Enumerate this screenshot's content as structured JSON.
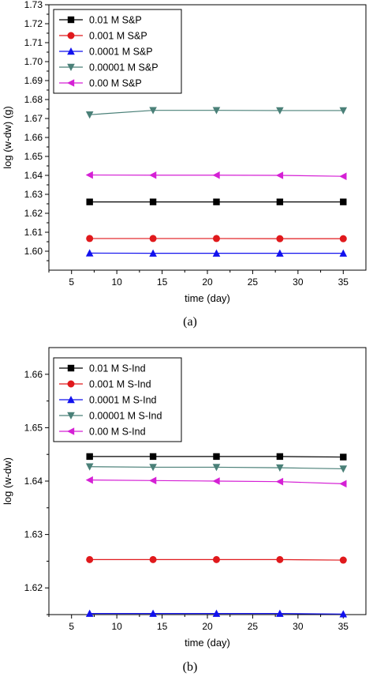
{
  "chart_data": [
    {
      "type": "line",
      "caption": "(a)",
      "xlabel": "time (day)",
      "ylabel": "log (w-dw) (g)",
      "xlim": [
        2.5,
        37.5
      ],
      "ylim": [
        1.59,
        1.73
      ],
      "xticks": [
        5,
        10,
        15,
        20,
        25,
        30,
        35
      ],
      "yticks": [
        1.6,
        1.61,
        1.62,
        1.63,
        1.64,
        1.65,
        1.66,
        1.67,
        1.68,
        1.69,
        1.7,
        1.71,
        1.72,
        1.73
      ],
      "ytick_decimals": 2,
      "legend_position": "top-left",
      "x": [
        7,
        14,
        21,
        28,
        35
      ],
      "series": [
        {
          "name": "0.01 M S&P",
          "values": [
            1.626,
            1.626,
            1.626,
            1.626,
            1.626
          ],
          "color": "#000000",
          "marker": "square"
        },
        {
          "name": "0.001 M S&P",
          "values": [
            1.6067,
            1.6067,
            1.6067,
            1.6066,
            1.6066
          ],
          "color": "#e0191c",
          "marker": "circle"
        },
        {
          "name": "0.0001 M S&P",
          "values": [
            1.599,
            1.5989,
            1.5989,
            1.5989,
            1.5989
          ],
          "color": "#1212ee",
          "marker": "triangle-up"
        },
        {
          "name": "0.00001 M S&P",
          "values": [
            1.672,
            1.6743,
            1.6743,
            1.6742,
            1.6742
          ],
          "color": "#4a8078",
          "marker": "triangle-down"
        },
        {
          "name": "0.00 M S&P",
          "values": [
            1.6402,
            1.6401,
            1.6401,
            1.64,
            1.6395
          ],
          "color": "#d520d5",
          "marker": "triangle-left"
        }
      ]
    },
    {
      "type": "line",
      "caption": "(b)",
      "xlabel": "time (day)",
      "ylabel": "log (w-dw)",
      "xlim": [
        2.5,
        37.5
      ],
      "ylim": [
        1.615,
        1.665
      ],
      "xticks": [
        5,
        10,
        15,
        20,
        25,
        30,
        35
      ],
      "yticks": [
        1.62,
        1.63,
        1.64,
        1.65,
        1.66
      ],
      "ytick_decimals": 2,
      "legend_position": "top-left",
      "x": [
        7,
        14,
        21,
        28,
        35
      ],
      "series": [
        {
          "name": "0.01 M S-Ind",
          "values": [
            1.6446,
            1.6446,
            1.6446,
            1.6446,
            1.6445
          ],
          "color": "#000000",
          "marker": "square"
        },
        {
          "name": "0.001 M S-Ind",
          "values": [
            1.6253,
            1.6253,
            1.6253,
            1.6253,
            1.6252
          ],
          "color": "#e0191c",
          "marker": "circle"
        },
        {
          "name": "0.0001 M S-Ind",
          "values": [
            1.6152,
            1.6152,
            1.6152,
            1.6152,
            1.6151
          ],
          "color": "#1212ee",
          "marker": "triangle-up"
        },
        {
          "name": "0.00001 M S-Ind",
          "values": [
            1.6427,
            1.6426,
            1.6426,
            1.6425,
            1.6423
          ],
          "color": "#4a8078",
          "marker": "triangle-down"
        },
        {
          "name": "0.00 M S-Ind",
          "values": [
            1.6402,
            1.6401,
            1.64,
            1.6399,
            1.6395
          ],
          "color": "#d520d5",
          "marker": "triangle-left"
        }
      ]
    }
  ]
}
